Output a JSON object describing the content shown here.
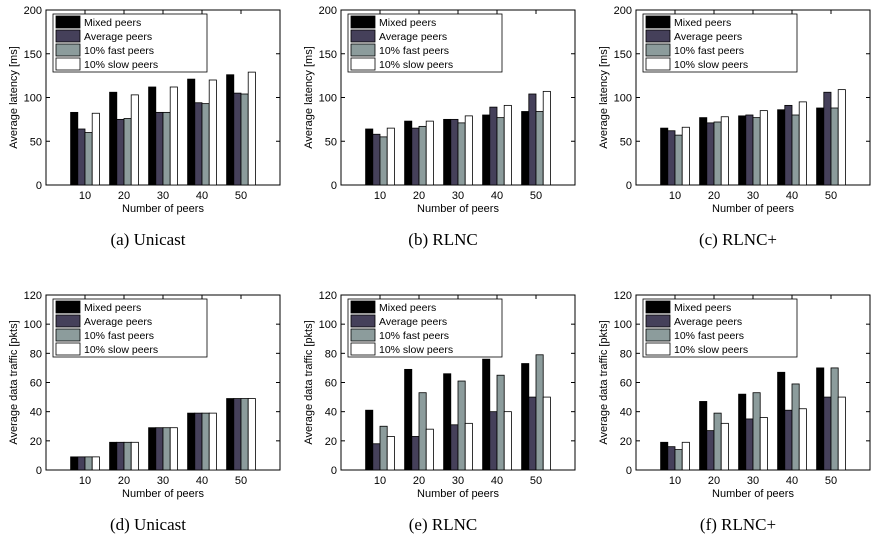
{
  "colors": {
    "Mixed peers": "#000000",
    "Average peers": "#45405a",
    "10% fast peers": "#8c9c9c",
    "10% slow peers": "#ffffff"
  },
  "captions": [
    "(a)  Unicast",
    "(b)  RLNC",
    "(c)  RLNC+",
    "(d)  Unicast",
    "(e)  RLNC",
    "(f)  RLNC+"
  ],
  "chart_data": [
    {
      "type": "bar",
      "categories": [
        "10",
        "20",
        "30",
        "40",
        "50"
      ],
      "series": [
        {
          "name": "Mixed peers",
          "values": [
            83,
            106,
            112,
            121,
            126
          ]
        },
        {
          "name": "Average peers",
          "values": [
            64,
            75,
            83,
            94,
            105
          ]
        },
        {
          "name": "10% fast peers",
          "values": [
            60,
            76,
            83,
            93,
            104
          ]
        },
        {
          "name": "10% slow peers",
          "values": [
            82,
            103,
            112,
            120,
            129
          ]
        }
      ],
      "xlabel": "Number of peers",
      "ylabel": "Average latency [ms]",
      "ylim": [
        0,
        200
      ],
      "yticks": [
        "0",
        "50",
        "100",
        "150",
        "200"
      ],
      "legend": "top-left",
      "grid": false
    },
    {
      "type": "bar",
      "categories": [
        "10",
        "20",
        "30",
        "40",
        "50"
      ],
      "series": [
        {
          "name": "Mixed peers",
          "values": [
            64,
            73,
            75,
            80,
            84
          ]
        },
        {
          "name": "Average peers",
          "values": [
            58,
            65,
            75,
            89,
            104
          ]
        },
        {
          "name": "10% fast peers",
          "values": [
            55,
            67,
            71,
            77,
            84
          ]
        },
        {
          "name": "10% slow peers",
          "values": [
            65,
            73,
            79,
            91,
            107
          ]
        }
      ],
      "xlabel": "Number of peers",
      "ylabel": "Average latency [ms]",
      "ylim": [
        0,
        200
      ],
      "yticks": [
        "0",
        "50",
        "100",
        "150",
        "200"
      ],
      "legend": "top-left",
      "grid": false
    },
    {
      "type": "bar",
      "categories": [
        "10",
        "20",
        "30",
        "40",
        "50"
      ],
      "series": [
        {
          "name": "Mixed peers",
          "values": [
            65,
            77,
            79,
            86,
            88
          ]
        },
        {
          "name": "Average peers",
          "values": [
            62,
            71,
            80,
            91,
            106
          ]
        },
        {
          "name": "10% fast peers",
          "values": [
            57,
            72,
            77,
            80,
            88
          ]
        },
        {
          "name": "10% slow peers",
          "values": [
            66,
            78,
            85,
            95,
            109
          ]
        }
      ],
      "xlabel": "Number of peers",
      "ylabel": "Average latency [ms]",
      "ylim": [
        0,
        200
      ],
      "yticks": [
        "0",
        "50",
        "100",
        "150",
        "200"
      ],
      "legend": "top-left",
      "grid": false
    },
    {
      "type": "bar",
      "categories": [
        "10",
        "20",
        "30",
        "40",
        "50"
      ],
      "series": [
        {
          "name": "Mixed peers",
          "values": [
            9,
            19,
            29,
            39,
            49
          ]
        },
        {
          "name": "Average peers",
          "values": [
            9,
            19,
            29,
            39,
            49
          ]
        },
        {
          "name": "10% fast peers",
          "values": [
            9,
            19,
            29,
            39,
            49
          ]
        },
        {
          "name": "10% slow peers",
          "values": [
            9,
            19,
            29,
            39,
            49
          ]
        }
      ],
      "xlabel": "Number of peers",
      "ylabel": "Average data traffic [pkts]",
      "ylim": [
        0,
        120
      ],
      "yticks": [
        "0",
        "20",
        "40",
        "60",
        "80",
        "100",
        "120"
      ],
      "legend": "top-left",
      "grid": false
    },
    {
      "type": "bar",
      "categories": [
        "10",
        "20",
        "30",
        "40",
        "50"
      ],
      "series": [
        {
          "name": "Mixed peers",
          "values": [
            41,
            69,
            66,
            76,
            73
          ]
        },
        {
          "name": "Average peers",
          "values": [
            18,
            23,
            31,
            40,
            50
          ]
        },
        {
          "name": "10% fast peers",
          "values": [
            30,
            53,
            61,
            65,
            79
          ]
        },
        {
          "name": "10% slow peers",
          "values": [
            23,
            28,
            32,
            40,
            50
          ]
        }
      ],
      "xlabel": "Number of peers",
      "ylabel": "Average data traffic [pkts]",
      "ylim": [
        0,
        120
      ],
      "yticks": [
        "0",
        "20",
        "40",
        "60",
        "80",
        "100",
        "120"
      ],
      "legend": "top-left",
      "grid": false
    },
    {
      "type": "bar",
      "categories": [
        "10",
        "20",
        "30",
        "40",
        "50"
      ],
      "series": [
        {
          "name": "Mixed peers",
          "values": [
            19,
            47,
            52,
            67,
            70
          ]
        },
        {
          "name": "Average peers",
          "values": [
            16,
            27,
            35,
            41,
            50
          ]
        },
        {
          "name": "10% fast peers",
          "values": [
            14,
            39,
            53,
            59,
            70
          ]
        },
        {
          "name": "10% slow peers",
          "values": [
            19,
            32,
            36,
            42,
            50
          ]
        }
      ],
      "xlabel": "Number of peers",
      "ylabel": "Average data traffic [pkts]",
      "ylim": [
        0,
        120
      ],
      "yticks": [
        "0",
        "20",
        "40",
        "60",
        "80",
        "100",
        "120"
      ],
      "legend": "top-left",
      "grid": false
    }
  ]
}
